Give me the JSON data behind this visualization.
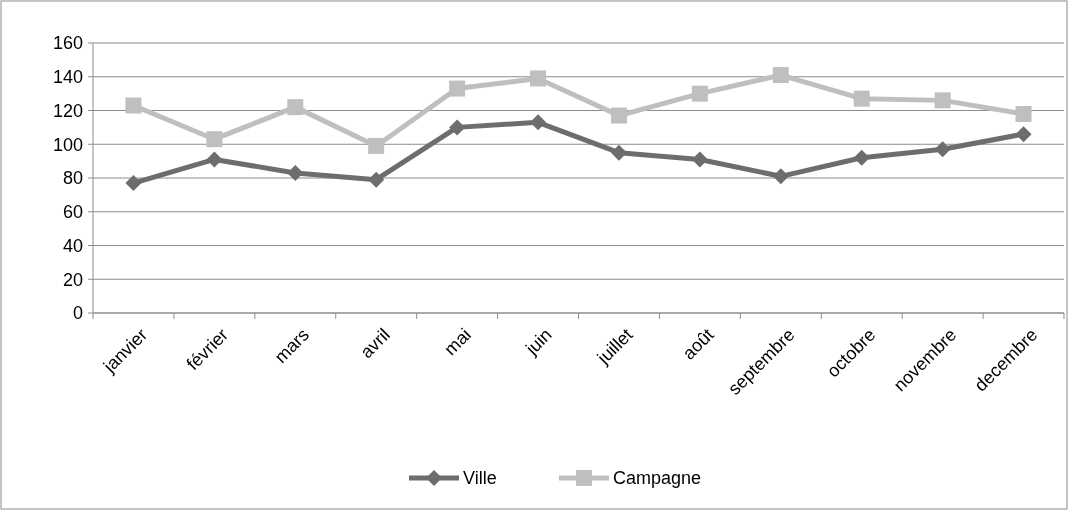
{
  "chart_data": {
    "type": "line",
    "categories": [
      "janvier",
      "février",
      "mars",
      "avril",
      "mai",
      "juin",
      "juillet",
      "août",
      "septembre",
      "octobre",
      "novembre",
      "decembre"
    ],
    "series": [
      {
        "name": "Ville",
        "color": "#6d6d6d",
        "marker": "diamond",
        "values": [
          77,
          91,
          83,
          79,
          110,
          113,
          95,
          91,
          81,
          92,
          97,
          106
        ]
      },
      {
        "name": "Campagne",
        "color": "#bfbfbf",
        "marker": "square",
        "values": [
          123,
          103,
          122,
          99,
          133,
          139,
          117,
          130,
          141,
          127,
          126,
          118
        ]
      }
    ],
    "ylim": [
      0,
      160
    ],
    "yticks": [
      0,
      20,
      40,
      60,
      80,
      100,
      120,
      140,
      160
    ],
    "grid": "y",
    "legend": "bottom"
  }
}
